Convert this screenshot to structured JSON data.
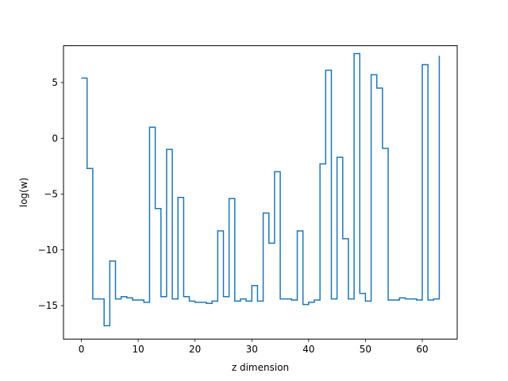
{
  "chart_data": {
    "type": "line",
    "drawstyle": "steps-post",
    "xlabel": "z dimension",
    "ylabel": "log(w)",
    "xlim": [
      -3.15,
      66.15
    ],
    "ylim": [
      -18.0,
      8.3
    ],
    "xticks": [
      0,
      10,
      20,
      30,
      40,
      50,
      60
    ],
    "yticks": [
      -15,
      -10,
      -5,
      0,
      5
    ],
    "line_color": "#1f77b4",
    "grid": false,
    "series": [
      {
        "x": [
          0,
          1,
          2,
          3,
          4,
          5,
          6,
          7,
          8,
          9,
          10,
          11,
          12,
          13,
          14,
          15,
          16,
          17,
          18,
          19,
          20,
          21,
          22,
          23,
          24,
          25,
          26,
          27,
          28,
          29,
          30,
          31,
          32,
          33,
          34,
          35,
          36,
          37,
          38,
          39,
          40,
          41,
          42,
          43,
          44,
          45,
          46,
          47,
          48,
          49,
          50,
          51,
          52,
          53,
          54,
          55,
          56,
          57,
          58,
          59,
          60,
          61,
          62,
          63
        ],
        "values": [
          5.4,
          -2.7,
          -14.4,
          -14.4,
          -16.8,
          -11.0,
          -14.4,
          -14.2,
          -14.3,
          -14.5,
          -14.5,
          -14.7,
          1.0,
          -6.3,
          -14.2,
          -1.0,
          -14.4,
          -5.3,
          -14.2,
          -14.6,
          -14.7,
          -14.7,
          -14.8,
          -14.6,
          -8.3,
          -14.2,
          -5.4,
          -14.6,
          -14.4,
          -14.6,
          -13.2,
          -14.6,
          -6.7,
          -9.4,
          -3.0,
          -14.4,
          -14.4,
          -14.5,
          -8.3,
          -14.9,
          -14.7,
          -14.5,
          -2.3,
          6.1,
          -14.4,
          -1.7,
          -9.0,
          -14.4,
          7.6,
          -13.9,
          -14.6,
          5.7,
          4.5,
          -0.9,
          -14.5,
          -14.5,
          -14.3,
          -14.4,
          -14.4,
          -14.5,
          6.6,
          -14.5,
          -14.4,
          7.4
        ]
      }
    ]
  }
}
